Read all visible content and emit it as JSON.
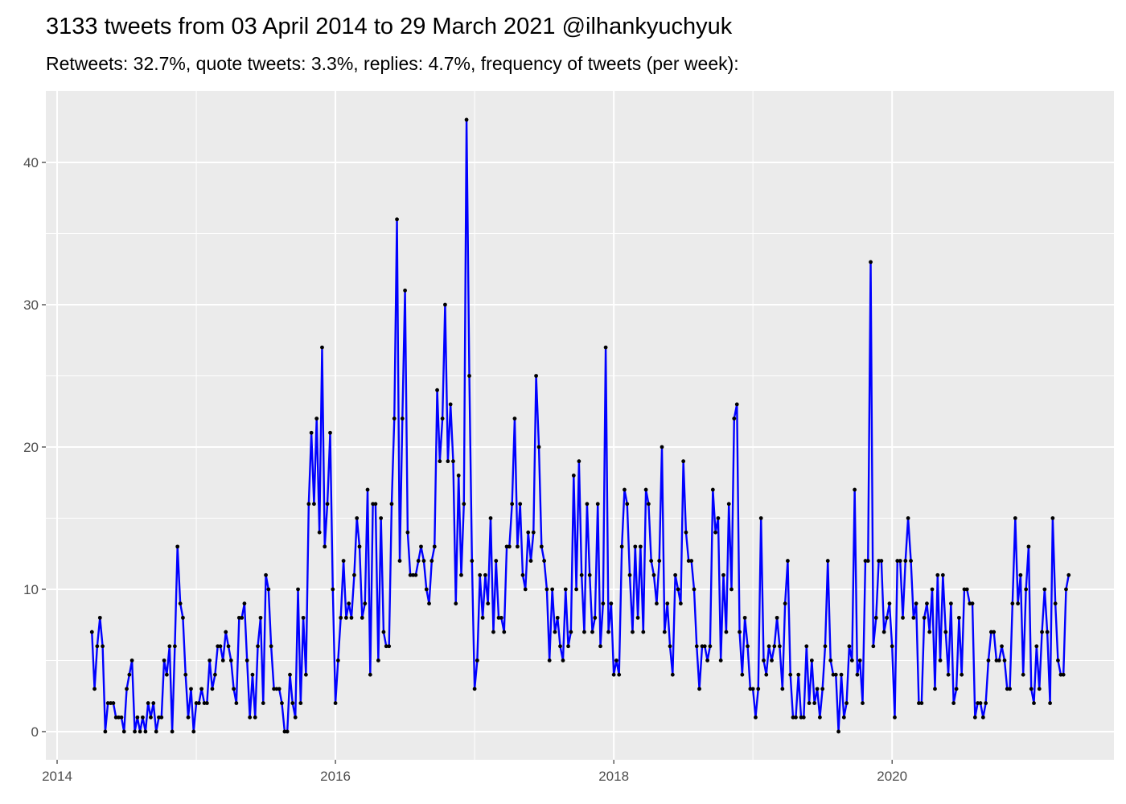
{
  "chart_data": {
    "type": "line",
    "title": "3133 tweets from 03 April 2014 to 29 March 2021 @ilhankyuchyuk",
    "subtitle": "Retweets: 32.7%, quote tweets: 3.3%, replies: 4.7%, frequency of tweets (per week):",
    "color": "#0000ff",
    "point_color": "#000000",
    "grid": true,
    "xlim": [
      2013.919,
      2021.594
    ],
    "ylim": [
      -1.98,
      45.03
    ],
    "xticks": [
      2014,
      2016,
      2018,
      2020
    ],
    "yticks": [
      0,
      10,
      20,
      30,
      40
    ],
    "x": [
      2014.25,
      2014.269,
      2014.288,
      2014.308,
      2014.327,
      2014.346,
      2014.365,
      2014.385,
      2014.404,
      2014.423,
      2014.442,
      2014.462,
      2014.481,
      2014.5,
      2014.519,
      2014.538,
      2014.558,
      2014.577,
      2014.596,
      2014.615,
      2014.635,
      2014.654,
      2014.673,
      2014.692,
      2014.712,
      2014.731,
      2014.75,
      2014.769,
      2014.788,
      2014.808,
      2014.827,
      2014.846,
      2014.865,
      2014.885,
      2014.904,
      2014.923,
      2014.942,
      2014.962,
      2014.981,
      2015,
      2015.019,
      2015.038,
      2015.058,
      2015.077,
      2015.096,
      2015.115,
      2015.135,
      2015.154,
      2015.173,
      2015.192,
      2015.212,
      2015.231,
      2015.25,
      2015.269,
      2015.288,
      2015.308,
      2015.327,
      2015.346,
      2015.365,
      2015.385,
      2015.404,
      2015.423,
      2015.442,
      2015.462,
      2015.481,
      2015.5,
      2015.519,
      2015.538,
      2015.558,
      2015.577,
      2015.596,
      2015.615,
      2015.635,
      2015.654,
      2015.673,
      2015.692,
      2015.712,
      2015.731,
      2015.75,
      2015.769,
      2015.788,
      2015.808,
      2015.827,
      2015.846,
      2015.865,
      2015.885,
      2015.904,
      2015.923,
      2015.942,
      2015.962,
      2015.981,
      2016,
      2016.019,
      2016.038,
      2016.058,
      2016.077,
      2016.096,
      2016.115,
      2016.135,
      2016.154,
      2016.173,
      2016.192,
      2016.212,
      2016.231,
      2016.25,
      2016.269,
      2016.288,
      2016.308,
      2016.327,
      2016.346,
      2016.365,
      2016.385,
      2016.404,
      2016.423,
      2016.442,
      2016.462,
      2016.481,
      2016.5,
      2016.519,
      2016.538,
      2016.558,
      2016.577,
      2016.596,
      2016.615,
      2016.635,
      2016.654,
      2016.673,
      2016.692,
      2016.712,
      2016.731,
      2016.75,
      2016.769,
      2016.788,
      2016.808,
      2016.827,
      2016.846,
      2016.865,
      2016.885,
      2016.904,
      2016.923,
      2016.942,
      2016.962,
      2016.981,
      2017,
      2017.019,
      2017.038,
      2017.058,
      2017.077,
      2017.096,
      2017.115,
      2017.135,
      2017.154,
      2017.173,
      2017.192,
      2017.212,
      2017.231,
      2017.25,
      2017.269,
      2017.288,
      2017.308,
      2017.327,
      2017.346,
      2017.365,
      2017.385,
      2017.404,
      2017.423,
      2017.442,
      2017.462,
      2017.481,
      2017.5,
      2017.519,
      2017.538,
      2017.558,
      2017.577,
      2017.596,
      2017.615,
      2017.635,
      2017.654,
      2017.673,
      2017.692,
      2017.712,
      2017.731,
      2017.75,
      2017.769,
      2017.788,
      2017.808,
      2017.827,
      2017.846,
      2017.865,
      2017.885,
      2017.904,
      2017.923,
      2017.942,
      2017.962,
      2017.981,
      2018,
      2018.019,
      2018.038,
      2018.058,
      2018.077,
      2018.096,
      2018.115,
      2018.135,
      2018.154,
      2018.173,
      2018.192,
      2018.212,
      2018.231,
      2018.25,
      2018.269,
      2018.288,
      2018.308,
      2018.327,
      2018.346,
      2018.365,
      2018.385,
      2018.404,
      2018.423,
      2018.442,
      2018.462,
      2018.481,
      2018.5,
      2018.519,
      2018.538,
      2018.558,
      2018.577,
      2018.596,
      2018.615,
      2018.635,
      2018.654,
      2018.673,
      2018.692,
      2018.712,
      2018.731,
      2018.75,
      2018.769,
      2018.788,
      2018.808,
      2018.827,
      2018.846,
      2018.865,
      2018.885,
      2018.904,
      2018.923,
      2018.942,
      2018.962,
      2018.981,
      2019,
      2019.019,
      2019.038,
      2019.058,
      2019.077,
      2019.096,
      2019.115,
      2019.135,
      2019.154,
      2019.173,
      2019.192,
      2019.212,
      2019.231,
      2019.25,
      2019.269,
      2019.288,
      2019.308,
      2019.327,
      2019.346,
      2019.365,
      2019.385,
      2019.404,
      2019.423,
      2019.442,
      2019.462,
      2019.481,
      2019.5,
      2019.519,
      2019.538,
      2019.558,
      2019.577,
      2019.596,
      2019.615,
      2019.635,
      2019.654,
      2019.673,
      2019.692,
      2019.712,
      2019.731,
      2019.75,
      2019.769,
      2019.788,
      2019.808,
      2019.827,
      2019.846,
      2019.865,
      2019.885,
      2019.904,
      2019.923,
      2019.942,
      2019.962,
      2019.981,
      2020,
      2020.019,
      2020.038,
      2020.058,
      2020.077,
      2020.096,
      2020.115,
      2020.135,
      2020.154,
      2020.173,
      2020.192,
      2020.212,
      2020.231,
      2020.25,
      2020.269,
      2020.288,
      2020.308,
      2020.327,
      2020.346,
      2020.365,
      2020.385,
      2020.404,
      2020.423,
      2020.442,
      2020.462,
      2020.481,
      2020.5,
      2020.519,
      2020.538,
      2020.558,
      2020.577,
      2020.596,
      2020.615,
      2020.635,
      2020.654,
      2020.673,
      2020.692,
      2020.712,
      2020.731,
      2020.75,
      2020.769,
      2020.788,
      2020.808,
      2020.827,
      2020.846,
      2020.865,
      2020.885,
      2020.904,
      2020.923,
      2020.942,
      2020.962,
      2020.981,
      2021,
      2021.019,
      2021.038,
      2021.058,
      2021.077,
      2021.096,
      2021.115,
      2021.135,
      2021.154,
      2021.173,
      2021.192,
      2021.212,
      2021.231,
      2021.25,
      2021.269
    ],
    "values": [
      7,
      3,
      6,
      8,
      6,
      0,
      2,
      2,
      2,
      1,
      1,
      1,
      0,
      3,
      4,
      5,
      0,
      1,
      0,
      1,
      0,
      2,
      1,
      2,
      0,
      1,
      1,
      5,
      4,
      6,
      0,
      6,
      13,
      9,
      8,
      4,
      1,
      3,
      0,
      2,
      2,
      3,
      2,
      2,
      5,
      3,
      4,
      6,
      6,
      5,
      7,
      6,
      5,
      3,
      2,
      8,
      8,
      9,
      5,
      1,
      4,
      1,
      6,
      8,
      2,
      11,
      10,
      6,
      3,
      3,
      3,
      2,
      0,
      0,
      4,
      2,
      1,
      10,
      2,
      8,
      4,
      16,
      21,
      16,
      22,
      14,
      27,
      13,
      16,
      21,
      10,
      2,
      5,
      8,
      12,
      8,
      9,
      8,
      11,
      15,
      13,
      8,
      9,
      17,
      4,
      16,
      16,
      5,
      15,
      7,
      6,
      6,
      16,
      22,
      36,
      12,
      22,
      31,
      14,
      11,
      11,
      11,
      12,
      13,
      12,
      10,
      9,
      12,
      13,
      24,
      19,
      22,
      30,
      19,
      23,
      19,
      9,
      18,
      11,
      16,
      43,
      25,
      12,
      3,
      5,
      11,
      8,
      11,
      9,
      15,
      7,
      12,
      8,
      8,
      7,
      13,
      13,
      16,
      22,
      13,
      16,
      11,
      10,
      14,
      12,
      14,
      25,
      20,
      13,
      12,
      10,
      5,
      10,
      7,
      8,
      6,
      5,
      10,
      6,
      7,
      18,
      10,
      19,
      11,
      7,
      16,
      11,
      7,
      8,
      16,
      6,
      9,
      27,
      7,
      9,
      4,
      5,
      4,
      13,
      17,
      16,
      11,
      7,
      13,
      8,
      13,
      7,
      17,
      16,
      12,
      11,
      9,
      12,
      20,
      7,
      9,
      6,
      4,
      11,
      10,
      9,
      19,
      14,
      12,
      12,
      10,
      6,
      3,
      6,
      6,
      5,
      6,
      17,
      14,
      15,
      5,
      11,
      7,
      16,
      10,
      22,
      23,
      7,
      4,
      8,
      6,
      3,
      3,
      1,
      3,
      15,
      5,
      4,
      6,
      5,
      6,
      8,
      6,
      3,
      9,
      12,
      4,
      1,
      1,
      4,
      1,
      1,
      6,
      2,
      5,
      2,
      3,
      1,
      3,
      6,
      12,
      5,
      4,
      4,
      0,
      4,
      1,
      2,
      6,
      5,
      17,
      4,
      5,
      2,
      12,
      12,
      33,
      6,
      8,
      12,
      12,
      7,
      8,
      9,
      6,
      1,
      12,
      12,
      8,
      12,
      15,
      12,
      8,
      9,
      2,
      2,
      8,
      9,
      7,
      10,
      3,
      11,
      5,
      11,
      7,
      4,
      9,
      2,
      3,
      8,
      4,
      10,
      10,
      9,
      9,
      1,
      2,
      2,
      1,
      2,
      5,
      7,
      7,
      5,
      5,
      6,
      5,
      3,
      3,
      9,
      15,
      9,
      11,
      4,
      10,
      13,
      3,
      2,
      6,
      3,
      7,
      10,
      7,
      2,
      15,
      9,
      5,
      4,
      4,
      10,
      11
    ]
  }
}
